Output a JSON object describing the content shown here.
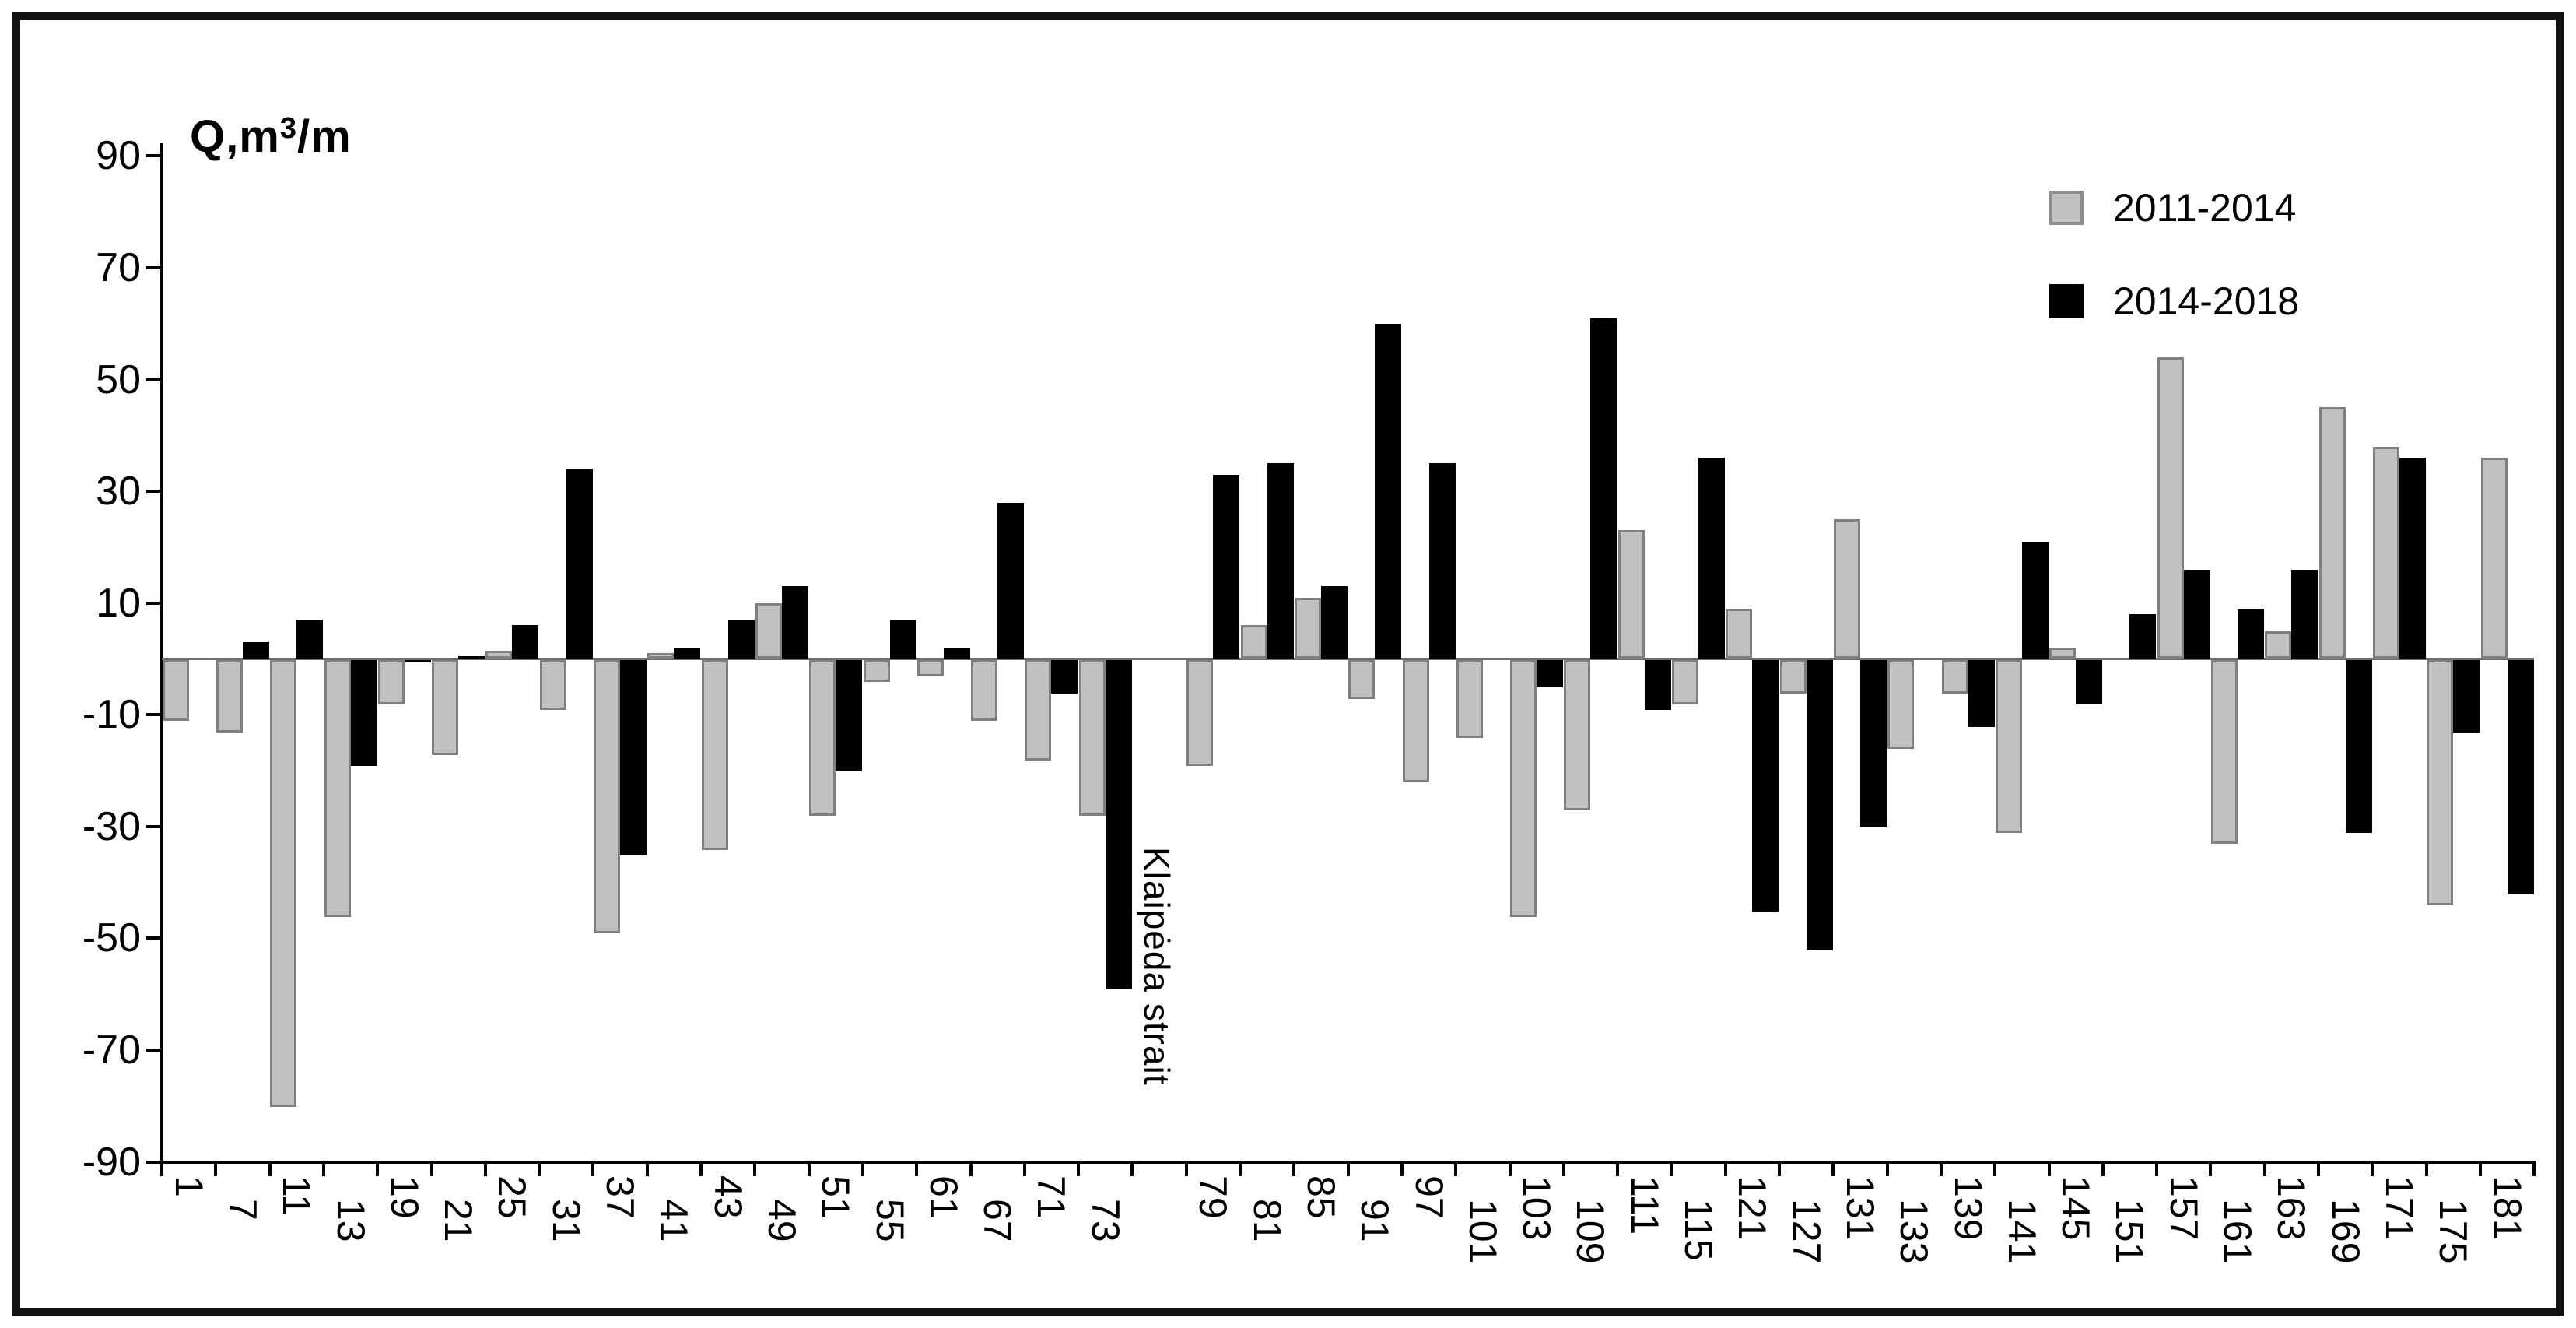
{
  "title": {
    "prefix": "Q,m",
    "sup": "3",
    "suffix": "/m"
  },
  "annotation": "Klaipėda strait",
  "chart_data": {
    "type": "bar",
    "title": "Q,m³/m",
    "xlabel": "",
    "ylabel": "Q, m³/m",
    "ylim": [
      -90,
      90
    ],
    "grid": false,
    "legend_position": "top-right",
    "y_ticks": [
      90,
      70,
      50,
      30,
      10,
      -10,
      -30,
      -50,
      -70,
      -90
    ],
    "categories": [
      "1",
      "7",
      "11",
      "13",
      "19",
      "21",
      "25",
      "31",
      "37",
      "41",
      "43",
      "49",
      "51",
      "55",
      "61",
      "67",
      "71",
      "73",
      "",
      "79",
      "81",
      "85",
      "91",
      "97",
      "101",
      "103",
      "109",
      "111",
      "115",
      "121",
      "127",
      "131",
      "133",
      "139",
      "141",
      "145",
      "151",
      "157",
      "161",
      "163",
      "169",
      "171",
      "175",
      "181"
    ],
    "series": [
      {
        "name": "2011-2014",
        "color": "#c1c1c1",
        "values": [
          -11,
          -13,
          -80,
          -46,
          -8,
          -17,
          1.5,
          -9,
          -49,
          1,
          -34,
          10,
          -28,
          -4,
          -3,
          -11,
          -18,
          -28,
          null,
          -19,
          6,
          11,
          -7,
          -22,
          -14,
          -46,
          -27,
          23,
          -8,
          9,
          -6,
          25,
          -16,
          -6,
          -31,
          2,
          null,
          54,
          -33,
          5,
          45,
          38,
          -44,
          36
        ]
      },
      {
        "name": "2014-2018",
        "color": "#000000",
        "values": [
          null,
          3,
          7,
          -19,
          -0.5,
          0.5,
          6,
          34,
          -35,
          2,
          7,
          13,
          -20,
          7,
          2,
          28,
          -6,
          -59,
          null,
          33,
          35,
          13,
          60,
          35,
          null,
          -5,
          61,
          -9,
          36,
          -45,
          -52,
          -30,
          null,
          -12,
          21,
          -8,
          8,
          16,
          9,
          16,
          -31,
          36,
          -13,
          -42
        ]
      }
    ],
    "annotations": [
      {
        "text": "Klaipėda strait",
        "slot_index": 18
      }
    ]
  }
}
